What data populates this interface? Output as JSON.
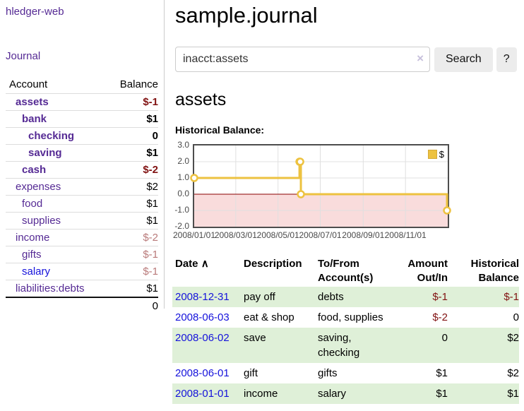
{
  "colors": {
    "visited_link": "#552a94",
    "new_link": "#1512db",
    "negative_strong": "#811212",
    "negative_soft": "#b97a7a",
    "row_stripe_green": "#dff0d8",
    "series_yellow": "#edc240",
    "negative_region_pink": "#f9dcdc",
    "zero_line_red": "#8b0000"
  },
  "sidebar": {
    "app_title": "hledger-web",
    "journal_label": "Journal",
    "accounts_table": {
      "headers": {
        "account": "Account",
        "balance": "Balance"
      },
      "rows": [
        {
          "name": "assets",
          "balance": "$-1",
          "depth": 1,
          "bold": true,
          "link": "visited",
          "tone": "neg-strong"
        },
        {
          "name": "bank",
          "balance": "$1",
          "depth": 2,
          "bold": true,
          "link": "visited",
          "tone": "plain"
        },
        {
          "name": "checking",
          "balance": "0",
          "depth": 3,
          "bold": true,
          "link": "visited",
          "tone": "plain"
        },
        {
          "name": "saving",
          "balance": "$1",
          "depth": 3,
          "bold": true,
          "link": "visited",
          "tone": "plain"
        },
        {
          "name": "cash",
          "balance": "$-2",
          "depth": 2,
          "bold": true,
          "link": "visited",
          "tone": "neg-strong"
        },
        {
          "name": "expenses",
          "balance": "$2",
          "depth": 1,
          "bold": false,
          "link": "visited",
          "tone": "plain"
        },
        {
          "name": "food",
          "balance": "$1",
          "depth": 2,
          "bold": false,
          "link": "visited",
          "tone": "plain"
        },
        {
          "name": "supplies",
          "balance": "$1",
          "depth": 2,
          "bold": false,
          "link": "visited",
          "tone": "plain"
        },
        {
          "name": "income",
          "balance": "$-2",
          "depth": 1,
          "bold": false,
          "link": "visited",
          "tone": "neg-soft"
        },
        {
          "name": "gifts",
          "balance": "$-1",
          "depth": 2,
          "bold": false,
          "link": "visited",
          "tone": "neg-soft"
        },
        {
          "name": "salary",
          "balance": "$-1",
          "depth": 2,
          "bold": false,
          "link": "new",
          "tone": "neg-soft"
        },
        {
          "name": "liabilities:debts",
          "balance": "$1",
          "depth": 1,
          "bold": false,
          "link": "visited",
          "tone": "plain"
        }
      ],
      "total": "0"
    }
  },
  "header": {
    "title": "sample.journal"
  },
  "search": {
    "query": "inacct:assets",
    "clear_icon": "×",
    "search_label": "Search",
    "help_label": "?"
  },
  "account_page": {
    "title": "assets",
    "chart_label": "Historical Balance:"
  },
  "chart_data": {
    "type": "line",
    "mode": "steps",
    "series": [
      {
        "name": "$",
        "color": "#edc240",
        "points": [
          [
            "2008-01-01",
            1
          ],
          [
            "2008-06-01",
            2
          ],
          [
            "2008-06-02",
            2
          ],
          [
            "2008-06-03",
            0
          ],
          [
            "2008-12-31",
            -1
          ]
        ]
      }
    ],
    "xlim": [
      "2008-01-01",
      "2009-01-01"
    ],
    "ylim": [
      -2,
      3
    ],
    "y_ticks": [
      "3.0",
      "2.0",
      "1.0",
      "0.0",
      "-1.0",
      "-2.0"
    ],
    "x_ticks": [
      "2008/01/01",
      "2008/03/01",
      "2008/05/01",
      "2008/07/01",
      "2008/09/01",
      "2008/11/01"
    ],
    "grid": true,
    "legend_position": "top-right",
    "negative_region_color": "#f9dcdc",
    "zero_line_color": "#8b0000"
  },
  "register_table": {
    "headers": {
      "date": "Date",
      "sort_icon": "∧",
      "description": "Description",
      "accounts": "To/From Account(s)",
      "amount": "Amount Out/In",
      "balance": "Historical Balance"
    },
    "rows": [
      {
        "date": "2008-12-31",
        "description": "pay off",
        "accounts": [
          "debts"
        ],
        "amount": "$-1",
        "amount_neg": true,
        "balance": "$-1",
        "balance_neg": true,
        "highlight": true
      },
      {
        "date": "2008-06-03",
        "description": "eat & shop",
        "accounts": [
          "food, supplies"
        ],
        "amount": "$-2",
        "amount_neg": true,
        "balance": "0",
        "balance_neg": false,
        "highlight": false
      },
      {
        "date": "2008-06-02",
        "description": "save",
        "accounts": [
          "saving,",
          "checking"
        ],
        "amount": "0",
        "amount_neg": false,
        "balance": "$2",
        "balance_neg": false,
        "highlight": true
      },
      {
        "date": "2008-06-01",
        "description": "gift",
        "accounts": [
          "gifts"
        ],
        "amount": "$1",
        "amount_neg": false,
        "balance": "$2",
        "balance_neg": false,
        "highlight": false
      },
      {
        "date": "2008-01-01",
        "description": "income",
        "accounts": [
          "salary"
        ],
        "amount": "$1",
        "amount_neg": false,
        "balance": "$1",
        "balance_neg": false,
        "highlight": true
      }
    ]
  }
}
